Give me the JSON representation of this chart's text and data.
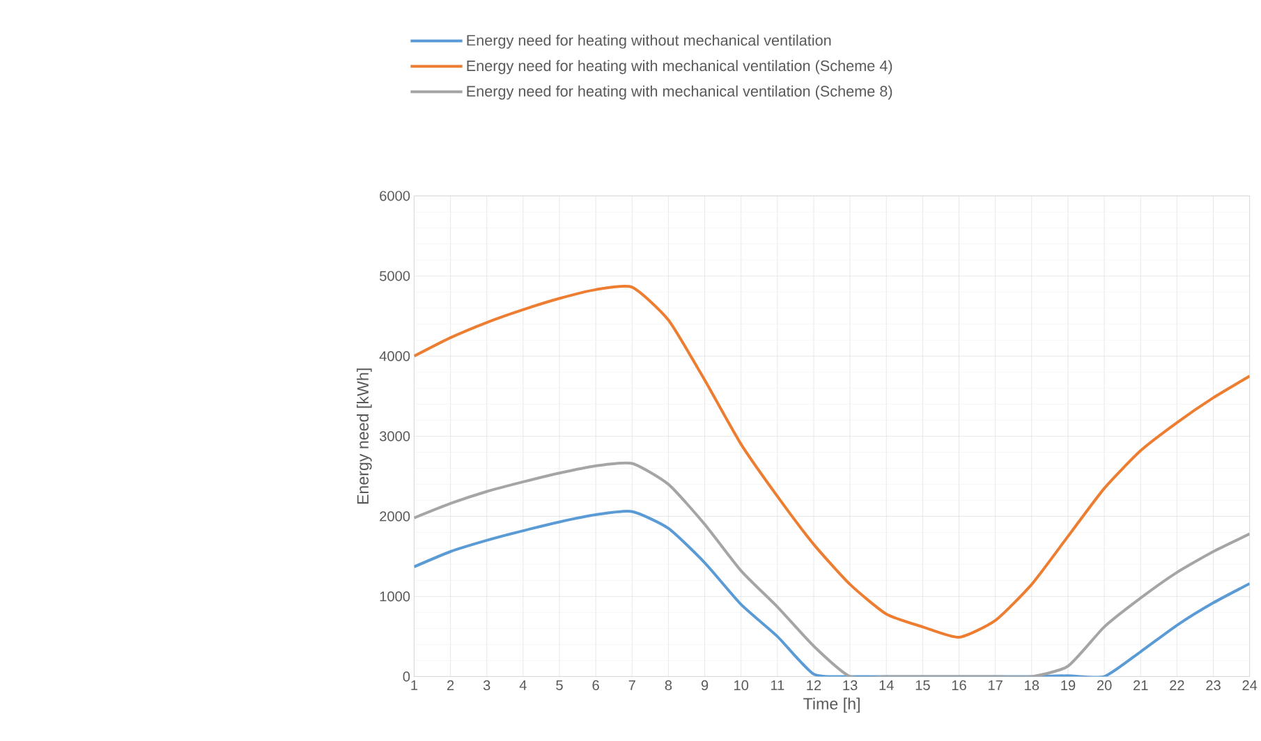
{
  "chart_data": {
    "type": "line",
    "xlabel": "Time [h]",
    "ylabel": "Energy need [kWh]",
    "categories": [
      "1",
      "2",
      "3",
      "4",
      "5",
      "6",
      "7",
      "8",
      "9",
      "10",
      "11",
      "12",
      "13",
      "14",
      "15",
      "16",
      "17",
      "18",
      "19",
      "20",
      "21",
      "22",
      "23",
      "24"
    ],
    "series": [
      {
        "name": "Energy need for heating without mechanical ventilation",
        "color": "#5b9bd5",
        "values": [
          1370,
          1560,
          1700,
          1820,
          1930,
          2020,
          2060,
          1850,
          1420,
          900,
          500,
          30,
          0,
          0,
          0,
          0,
          0,
          0,
          10,
          0,
          310,
          640,
          920,
          1160
        ]
      },
      {
        "name": "Energy need for heating with mechanical ventilation (Scheme 4)",
        "color": "#ed7d31",
        "values": [
          4000,
          4230,
          4420,
          4580,
          4720,
          4830,
          4860,
          4450,
          3700,
          2900,
          2250,
          1650,
          1150,
          780,
          620,
          490,
          700,
          1150,
          1750,
          2350,
          2820,
          3170,
          3480,
          3750
        ]
      },
      {
        "name": "Energy need for heating with mechanical ventilation (Scheme 8)",
        "color": "#a5a5a5",
        "values": [
          1980,
          2160,
          2310,
          2430,
          2540,
          2630,
          2660,
          2400,
          1900,
          1320,
          870,
          380,
          0,
          0,
          0,
          0,
          0,
          0,
          130,
          620,
          980,
          1300,
          1560,
          1780
        ]
      }
    ],
    "ylim": [
      0,
      6000
    ],
    "yticks": [
      0,
      1000,
      2000,
      3000,
      4000,
      5000,
      6000
    ],
    "grid": true,
    "legend": "top",
    "marker": "none",
    "line_style": "solid"
  }
}
